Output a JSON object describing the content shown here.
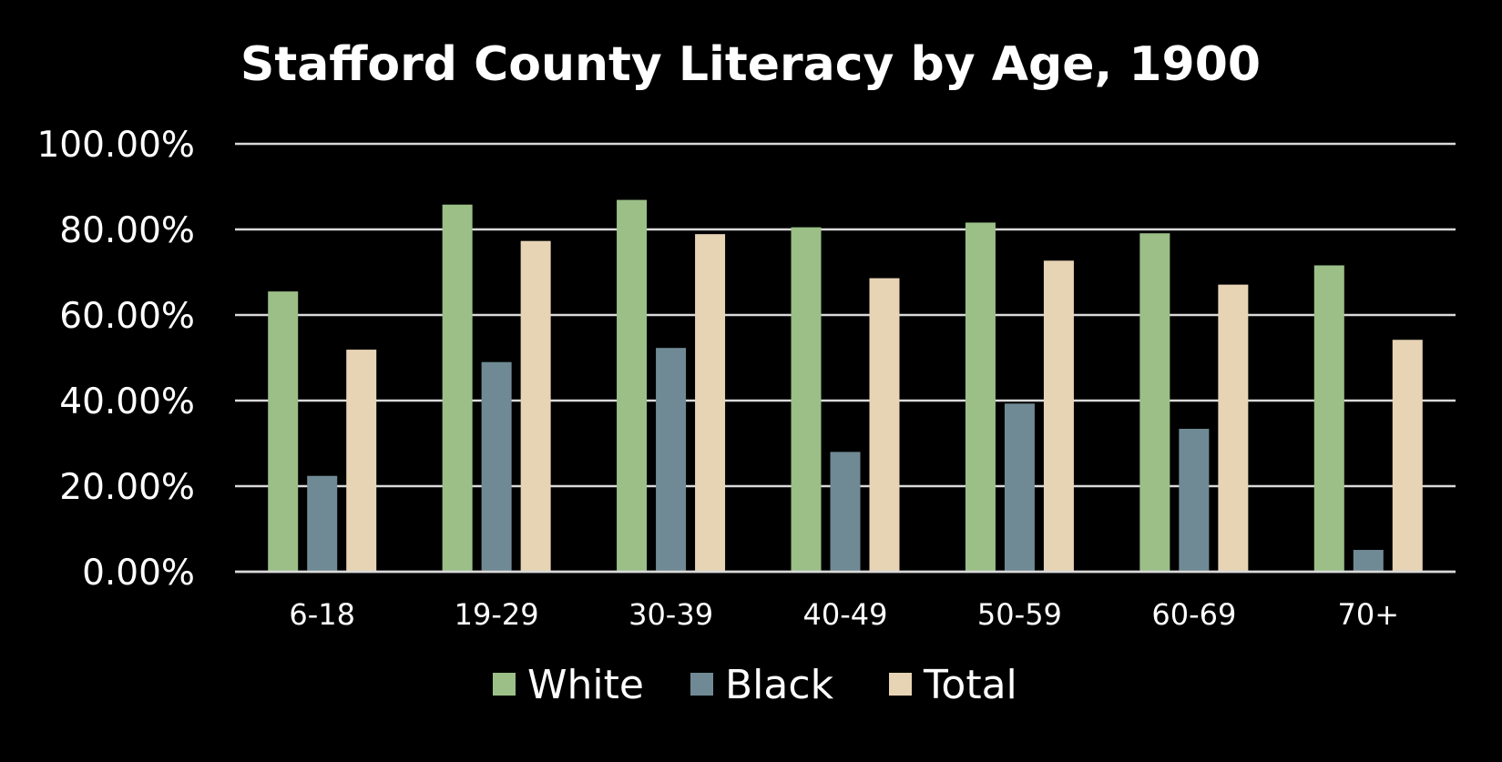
{
  "chart_data": {
    "type": "bar",
    "title": "Stafford County Literacy by Age, 1900",
    "xlabel": "",
    "ylabel": "",
    "categories": [
      "6-18",
      "19-29",
      "30-39",
      "40-49",
      "50-59",
      "60-69",
      "70+"
    ],
    "series": [
      {
        "name": "White",
        "color": "#9bbf87",
        "values": [
          65.5,
          85.8,
          86.9,
          80.5,
          81.6,
          79.1,
          71.6
        ]
      },
      {
        "name": "Black",
        "color": "#6f8a94",
        "values": [
          22.4,
          49.0,
          52.3,
          28.0,
          39.3,
          33.4,
          5.1
        ]
      },
      {
        "name": "Total",
        "color": "#e7d4b5",
        "values": [
          51.9,
          77.3,
          78.9,
          68.6,
          72.7,
          67.1,
          54.2
        ]
      }
    ],
    "yticks": [
      "0.00%",
      "20.00%",
      "40.00%",
      "60.00%",
      "80.00%",
      "100.00%"
    ],
    "ylim": [
      0,
      100
    ],
    "grid": true,
    "legend_position": "bottom"
  }
}
